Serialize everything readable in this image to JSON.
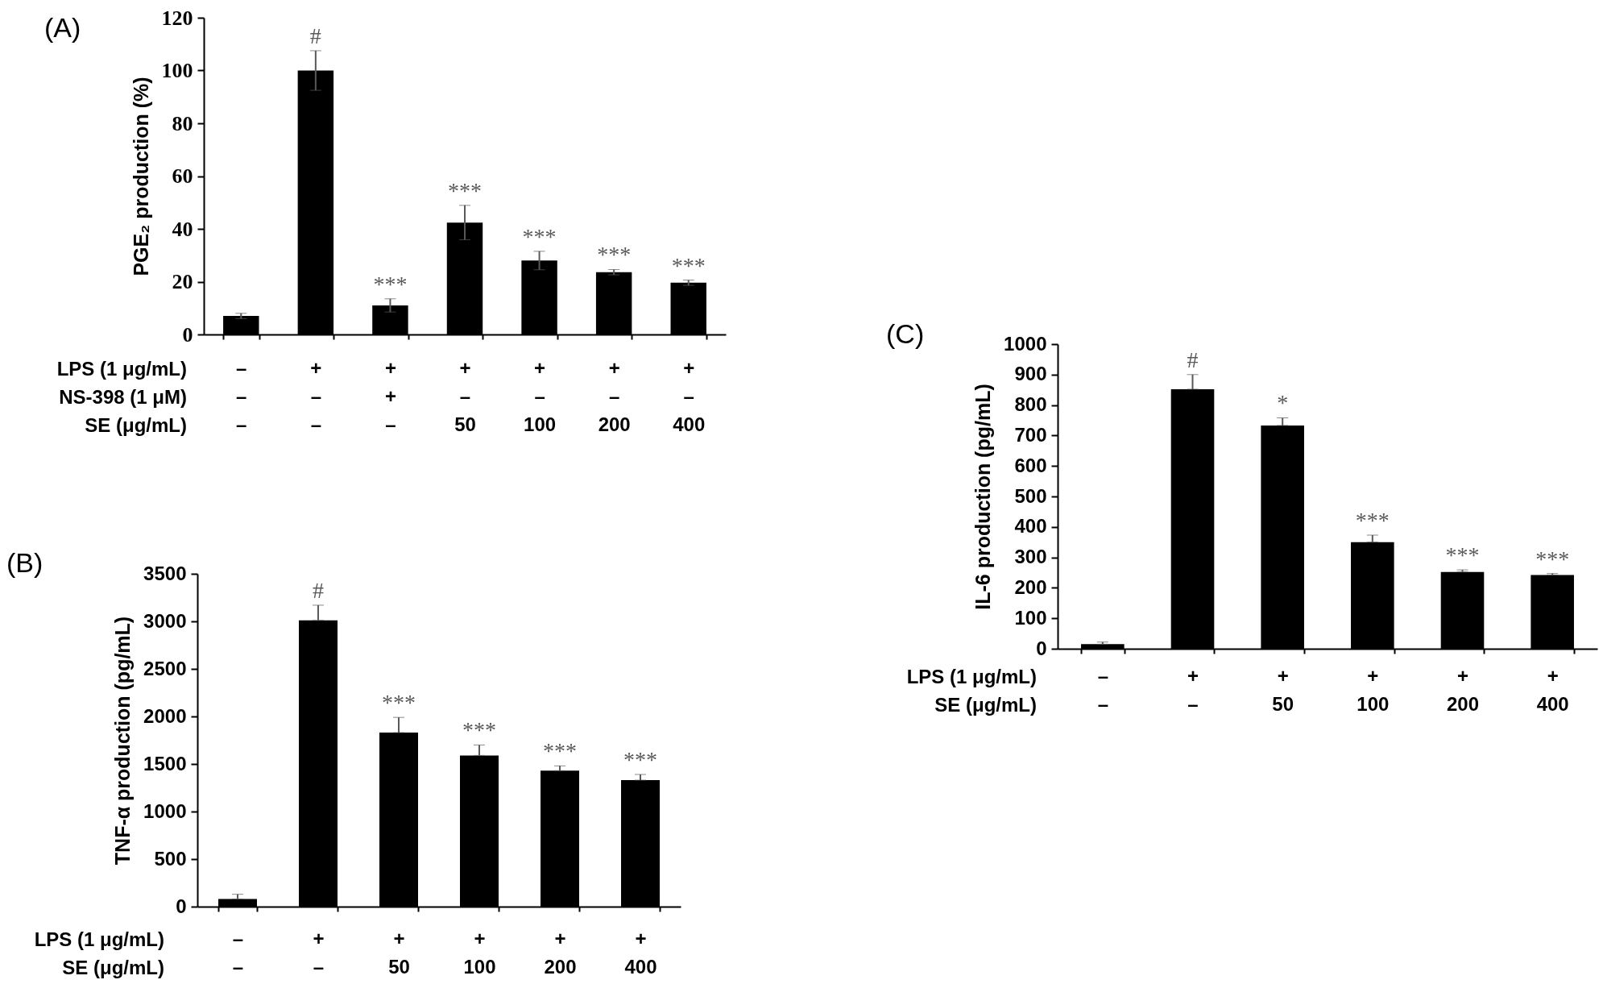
{
  "chart_data": [
    {
      "type": "bar",
      "title": "(A)",
      "ylabel": "PGE₂ production (%)",
      "xlabel": "LPS (1 μg/mL)\nNS-398 (1 μM)\nSE (μg/mL)",
      "categories": [
        "–\n–\n–",
        "+\n–\n–",
        "+\n+\n–",
        "+\n–\n50",
        "+\n–\n100",
        "+\n–\n200",
        "+\n–\n400"
      ],
      "values": [
        7,
        100,
        11,
        42.4,
        28,
        23.6,
        19.6
      ],
      "color": "#000000",
      "errors": [
        1,
        7.5,
        2.5,
        6.5,
        3.5,
        1,
        1
      ],
      "ylim": [
        0,
        120
      ],
      "yticks": [
        0,
        20,
        40,
        60,
        80,
        100,
        120
      ],
      "annotations": [
        {
          "text": "#",
          "x": "+\n–\n–",
          "y": 107.5
        },
        {
          "text": "***",
          "x": "+\n+\n–",
          "y": 13.5
        },
        {
          "text": "***",
          "x": "+\n–\n50",
          "y": 48.9
        },
        {
          "text": "***",
          "x": "+\n–\n100",
          "y": 31.5
        },
        {
          "text": "***",
          "x": "+\n–\n200",
          "y": 24.6
        },
        {
          "text": "***",
          "x": "+\n–\n400",
          "y": 20.6
        }
      ]
    },
    {
      "type": "bar",
      "title": "(B)",
      "ylabel": "TNF-α production (pg/mL)",
      "xlabel": "LPS (1 μg/mL)\nSE (μg/mL)",
      "categories": [
        "–\n–",
        "+\n–",
        "+\n50",
        "+\n100",
        "+\n200",
        "+\n400"
      ],
      "values": [
        80,
        3010,
        1830,
        1590,
        1430,
        1330
      ],
      "color": "#000000",
      "errors": [
        [
          80,
          130
        ],
        [
          3010,
          3170
        ],
        [
          1830,
          1990
        ],
        [
          1590,
          1700
        ],
        [
          1430,
          1480
        ],
        [
          1330,
          1390
        ]
      ],
      "ylim": [
        0,
        3500
      ],
      "yticks": [
        0,
        500,
        1000,
        1500,
        2000,
        2500,
        3000,
        3500
      ],
      "annotations": [
        {
          "text": "#",
          "x": "+\n–",
          "y": 3170
        },
        {
          "text": "***",
          "x": "+\n50",
          "y": 1990
        },
        {
          "text": "***",
          "x": "+\n100",
          "y": 1700
        },
        {
          "text": "***",
          "x": "+\n200",
          "y": 1480
        },
        {
          "text": "***",
          "x": "+\n400",
          "y": 1390
        }
      ]
    },
    {
      "type": "bar",
      "title": "(C)",
      "ylabel": "IL-6 production (pg/mL)",
      "xlabel": "LPS (1 μg/mL)\nSE (μg/mL)",
      "categories": [
        "–\n–",
        "+\n–",
        "+\n50",
        "+\n100",
        "+\n200",
        "+\n400"
      ],
      "values": [
        15,
        852,
        733,
        350,
        252,
        242
      ],
      "color": "#000000",
      "errors": [
        [
          15,
          22
        ],
        [
          852,
          900
        ],
        [
          733,
          758
        ],
        [
          350,
          373
        ],
        [
          252,
          259
        ],
        [
          242,
          247
        ]
      ],
      "ylim": [
        0,
        1000
      ],
      "yticks": [
        0,
        100,
        200,
        300,
        400,
        500,
        600,
        700,
        800,
        900,
        1000
      ],
      "annotations": [
        {
          "text": "#",
          "x": "+\n–",
          "y": 900
        },
        {
          "text": "*",
          "x": "+\n50",
          "y": 758
        },
        {
          "text": "***",
          "x": "+\n100",
          "y": 373
        },
        {
          "text": "***",
          "x": "+\n200",
          "y": 259
        },
        {
          "text": "***",
          "x": "+\n400",
          "y": 247
        }
      ]
    }
  ]
}
